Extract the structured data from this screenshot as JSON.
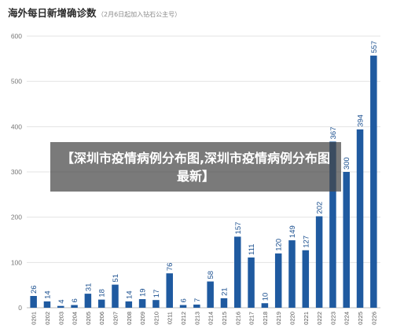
{
  "chart_data": {
    "type": "bar",
    "title": "海外每日新增确诊数",
    "subtitle": "（2月6日起加入钻石公主号）",
    "categories": [
      "0201",
      "0202",
      "0203",
      "0204",
      "0205",
      "0206",
      "0207",
      "0208",
      "0209",
      "0210",
      "0211",
      "0212",
      "0213",
      "0214",
      "0215",
      "0216",
      "0217",
      "0218",
      "0219",
      "0220",
      "0221",
      "0222",
      "0223",
      "0224",
      "0225",
      "0226"
    ],
    "values": [
      26,
      14,
      4,
      6,
      31,
      18,
      51,
      14,
      19,
      17,
      76,
      6,
      7,
      58,
      21,
      157,
      111,
      10,
      120,
      149,
      127,
      202,
      367,
      300,
      394,
      557
    ],
    "ylim": [
      0,
      600
    ],
    "yticks": [
      0,
      100,
      200,
      300,
      400,
      500,
      600
    ],
    "xlabel": "",
    "ylabel": "",
    "grid": true,
    "bar_color": "#1f5aa0"
  },
  "overlay": {
    "text": "【深圳市疫情病例分布图,深圳市疫情病例分布图最新】"
  }
}
